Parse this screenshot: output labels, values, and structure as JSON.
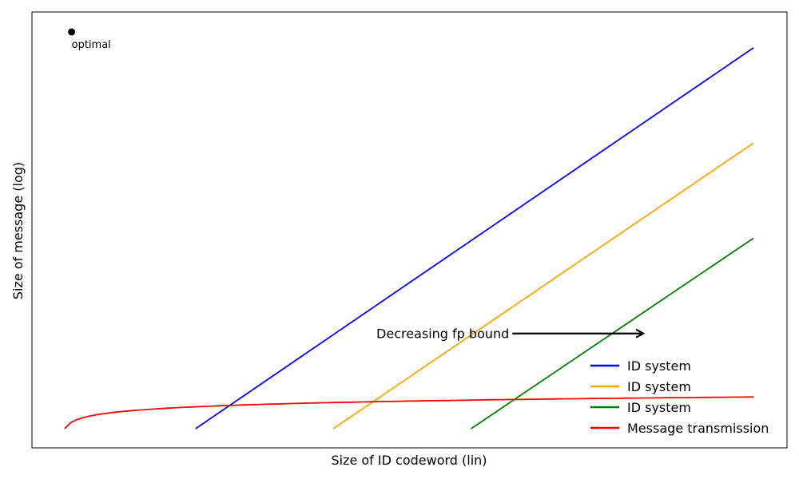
{
  "chart_data": {
    "type": "line",
    "title": "",
    "xlabel": "Size of ID codeword (lin)",
    "ylabel": "Size of message (log)",
    "xlim": [
      -0.05,
      1.05
    ],
    "ylim": [
      -0.05,
      1.05
    ],
    "xscale": "linear",
    "yscale": "log (unlabeled)",
    "grid": false,
    "ticks_shown": false,
    "legend_position": "bottom-right",
    "series": [
      {
        "name": "ID system",
        "color": "#0000ff",
        "x": [
          0.19,
          1.0
        ],
        "y": [
          0.0,
          0.96
        ]
      },
      {
        "name": "ID system",
        "color": "#ffa500",
        "x": [
          0.39,
          1.0
        ],
        "y": [
          0.0,
          0.72
        ]
      },
      {
        "name": "ID system",
        "color": "#008000",
        "x": [
          0.59,
          1.0
        ],
        "y": [
          0.0,
          0.48
        ]
      },
      {
        "name": "Message transmission",
        "color": "#ff0000",
        "curve": "logarithmic",
        "x_start": 0.0,
        "x_end": 1.0,
        "y_start": 0.0,
        "y_end": 0.08
      }
    ],
    "points": [
      {
        "label": "optimal",
        "x": 0.01,
        "y": 1.0,
        "color": "#000000"
      }
    ],
    "annotations": [
      {
        "text": "Decreasing fp bound",
        "arrow_from_x": 0.65,
        "arrow_to_x": 0.84,
        "y": 0.24
      }
    ]
  }
}
